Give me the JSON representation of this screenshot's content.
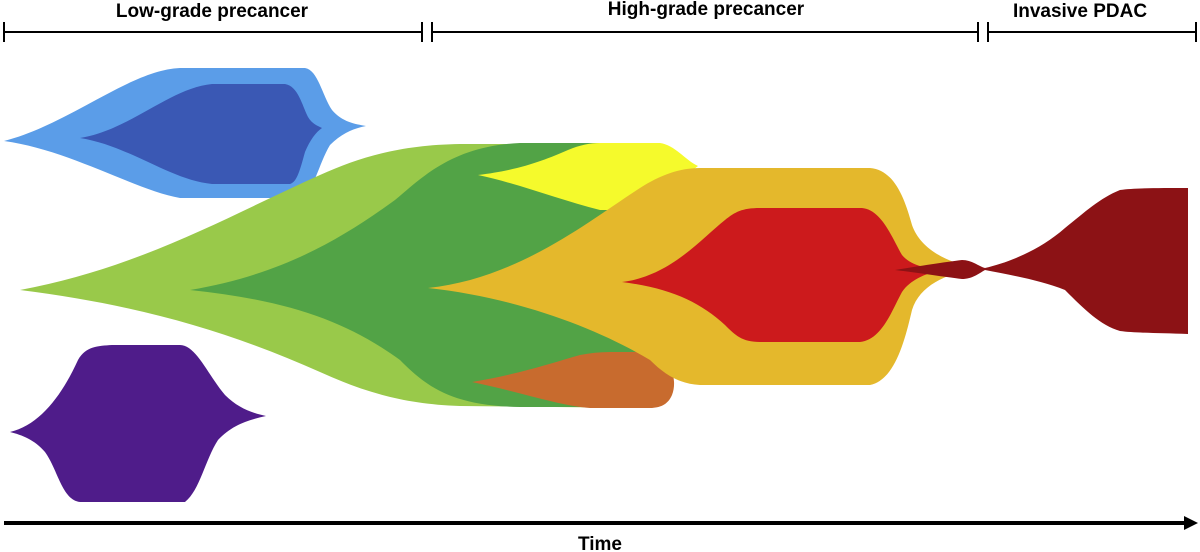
{
  "stages": [
    {
      "label": "Low-grade precancer"
    },
    {
      "label": "High-grade precancer"
    },
    {
      "label": "Invasive PDAC"
    }
  ],
  "axis": {
    "label": "Time"
  },
  "clones": [
    {
      "name": "low-grade-clone-light-blue",
      "color": "#5b9de8"
    },
    {
      "name": "low-grade-clone-dark-blue",
      "color": "#3a58b4"
    },
    {
      "name": "low-grade-clone-purple",
      "color": "#4f1c8a"
    },
    {
      "name": "clone-light-green",
      "color": "#99c94a"
    },
    {
      "name": "clone-dark-green",
      "color": "#52a346"
    },
    {
      "name": "clone-yellow",
      "color": "#f5fa2c"
    },
    {
      "name": "clone-orange-brown",
      "color": "#c86b2e"
    },
    {
      "name": "clone-amber",
      "color": "#e4b82c"
    },
    {
      "name": "clone-red",
      "color": "#cc1a1c"
    },
    {
      "name": "clone-dark-red-pdac",
      "color": "#8c1215"
    }
  ]
}
